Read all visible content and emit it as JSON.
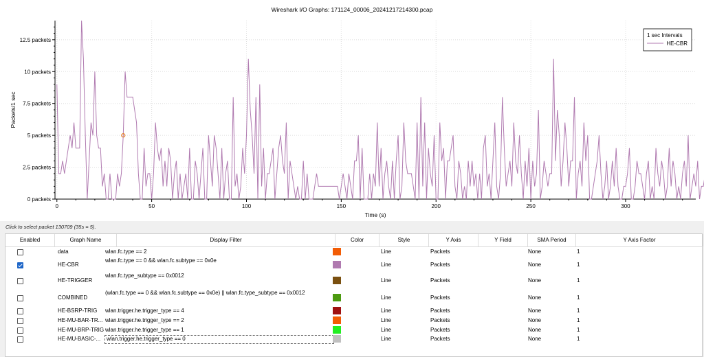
{
  "window": {
    "title": "Wireshark I/O Graphs: 171124_00006_20241217214300.pcap"
  },
  "status_hint": "Click to select packet 130709 (35s = 5).",
  "chart_data": {
    "type": "line",
    "title": "Wireshark I/O Graphs: 171124_00006_20241217214300.pcap",
    "xlabel": "Time (s)",
    "ylabel": "Packets/1 sec",
    "xlim": [
      -1,
      337
    ],
    "ylim": [
      0,
      14
    ],
    "x_ticks": [
      0,
      50,
      100,
      150,
      200,
      250,
      300
    ],
    "y_ticks": [
      0,
      2.5,
      5,
      7.5,
      10,
      12.5
    ],
    "y_tick_labels": [
      "0 packets",
      "2.5 packets",
      "5 packets",
      "7.5 packets",
      "10 packets",
      "12.5 packets"
    ],
    "grid": true,
    "legend": {
      "title": "1 sec Intervals",
      "placement": "top-right",
      "entries": [
        "HE-CBR"
      ]
    },
    "selected_point": {
      "x": 35,
      "y": 5,
      "color": "#e67e22"
    },
    "series": [
      {
        "name": "HE-CBR",
        "color": "#b07ab0",
        "values": [
          9,
          2,
          2,
          3,
          2,
          3,
          4,
          5,
          4,
          6,
          4,
          4,
          4,
          14,
          11,
          5,
          0,
          3,
          6,
          5,
          10,
          5,
          4,
          4,
          1,
          2,
          0,
          0,
          2,
          0,
          0,
          0,
          2,
          1,
          2,
          5,
          10,
          8,
          8,
          8,
          8,
          7,
          6,
          2,
          0,
          0,
          4,
          1,
          2,
          2,
          0,
          2,
          6,
          4,
          3,
          4,
          1,
          3,
          1,
          4,
          3,
          0,
          2,
          3,
          0,
          2,
          0,
          1,
          2,
          0,
          4,
          0,
          0,
          3,
          2,
          0,
          2,
          4,
          0,
          0,
          5,
          3,
          1,
          5,
          4,
          2,
          0,
          4,
          0,
          2,
          3,
          0,
          0,
          8,
          1,
          2,
          0,
          1,
          4,
          2,
          5,
          11,
          7,
          5,
          2,
          8,
          0,
          9,
          1,
          4,
          0,
          2,
          2,
          3,
          4,
          0,
          2,
          4,
          5,
          3,
          2,
          6,
          0,
          3,
          2,
          1,
          0,
          1,
          0,
          0,
          3,
          0,
          2,
          0,
          0,
          0,
          1,
          2,
          1,
          1,
          1,
          1,
          1,
          1,
          1,
          1,
          1,
          1,
          1,
          0,
          1,
          2,
          1,
          0,
          2,
          1,
          0,
          3,
          3,
          5,
          0,
          4,
          0,
          0,
          0,
          2,
          0,
          2,
          1,
          6,
          1,
          4,
          0,
          2,
          3,
          1,
          0,
          3,
          0,
          3,
          5,
          0,
          1,
          6,
          3,
          2,
          2,
          2,
          1,
          0,
          6,
          0,
          8,
          1,
          6,
          0,
          4,
          2,
          1,
          5,
          0,
          0,
          6,
          3,
          4,
          0,
          3,
          3,
          4,
          5,
          1,
          0,
          3,
          2,
          0,
          1,
          0,
          3,
          1,
          3,
          1,
          2,
          0,
          2,
          0,
          4,
          5,
          1,
          2,
          0,
          3,
          6,
          1,
          0,
          2,
          8,
          4,
          1,
          2,
          3,
          1,
          6,
          3,
          2,
          5,
          2,
          0,
          3,
          1,
          4,
          0,
          3,
          1,
          2,
          7,
          0,
          1,
          3,
          2,
          1,
          2,
          2,
          11,
          3,
          7,
          5,
          1,
          3,
          6,
          4,
          1,
          3,
          3,
          8,
          0,
          2,
          3,
          1,
          6,
          3,
          5,
          0,
          0,
          1,
          2,
          3,
          5,
          2,
          0,
          1,
          3,
          0,
          1,
          3,
          1,
          4,
          1,
          0,
          0,
          1,
          1,
          2,
          4,
          0,
          0,
          1,
          3,
          2,
          2,
          1,
          0,
          2,
          3,
          0,
          1,
          0,
          4,
          2,
          1,
          3,
          2,
          0,
          1,
          4,
          1,
          3,
          2,
          0,
          1,
          0,
          2,
          3,
          1,
          5,
          0,
          1,
          2,
          1,
          3,
          0,
          1,
          1,
          2,
          2,
          3,
          1,
          4,
          1,
          0,
          1,
          1,
          0,
          3,
          1,
          2,
          0,
          1,
          0
        ]
      }
    ]
  },
  "table": {
    "headers": [
      "Enabled",
      "Graph Name",
      "Display Filter",
      "Color",
      "Style",
      "Y Axis",
      "Y Field",
      "SMA Period",
      "Y Axis Factor"
    ],
    "rows": [
      {
        "enabled": false,
        "name": "data",
        "filter": "wlan.fc.type == 2",
        "color": "#f25c05",
        "style": "Line",
        "yaxis": "Packets",
        "yfield": "",
        "sma": "None",
        "factor": "1"
      },
      {
        "enabled": true,
        "name": "HE-CBR",
        "filter": "wlan.fc.type == 0 && wlan.fc.subtype == 0x0e",
        "color": "#b07ab0",
        "style": "Line",
        "yaxis": "Packets",
        "yfield": "",
        "sma": "None",
        "factor": "1"
      },
      {
        "enabled": false,
        "name": "HE-TRIGGER",
        "filter": "wlan.fc.type_subtype == 0x0012",
        "color": "#7a5010",
        "style": "Line",
        "yaxis": "Packets",
        "yfield": "",
        "sma": "None",
        "factor": "1"
      },
      {
        "enabled": false,
        "name": "COMBINED",
        "filter": "(wlan.fc.type == 0 && wlan.fc.subtype == 0x0e) || wlan.fc.type_subtype == 0x0012",
        "color": "#4c9a10",
        "style": "Line",
        "yaxis": "Packets",
        "yfield": "",
        "sma": "None",
        "factor": "1"
      },
      {
        "enabled": false,
        "name": "HE-BSRP-TRIG",
        "filter": "wlan.trigger.he.trigger_type == 4",
        "color": "#a01010",
        "style": "Line",
        "yaxis": "Packets",
        "yfield": "",
        "sma": "None",
        "factor": "1"
      },
      {
        "enabled": false,
        "name": "HE-MU-BAR-TR...",
        "filter": "wlan.trigger.he.trigger_type == 2",
        "color": "#f25c05",
        "style": "Line",
        "yaxis": "Packets",
        "yfield": "",
        "sma": "None",
        "factor": "1"
      },
      {
        "enabled": false,
        "name": "HE-MU-BRP-TRIG",
        "filter": "wlan.trigger.he.trigger_type == 1",
        "color": "#22ee22",
        "style": "Line",
        "yaxis": "Packets",
        "yfield": "",
        "sma": "None",
        "factor": "1"
      },
      {
        "enabled": false,
        "name": "HE-MU-BASIC-...",
        "filter": "wlan.trigger.he.trigger_type == 0",
        "color": "#c0c0c0",
        "style": "Line",
        "yaxis": "Packets",
        "yfield": "",
        "sma": "None",
        "factor": "1"
      }
    ]
  }
}
